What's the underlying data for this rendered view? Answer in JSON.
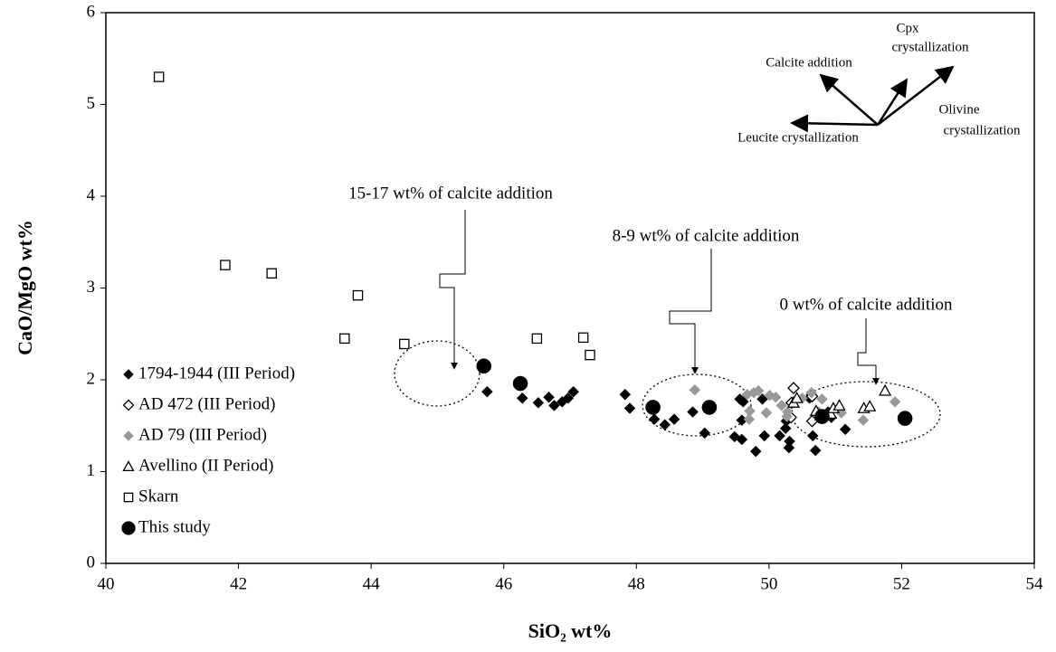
{
  "chart_data": {
    "type": "scatter",
    "x_label": "SiO₂ wt%",
    "y_label": "CaO/MgO wt%",
    "xlim": [
      40,
      54
    ],
    "xticks": [
      40,
      42,
      44,
      46,
      48,
      50,
      52,
      54
    ],
    "ylim": [
      0,
      6
    ],
    "yticks": [
      0,
      1,
      2,
      3,
      4,
      5,
      6
    ],
    "grid": false,
    "legend": "left",
    "series": [
      {
        "name": "1794-1944 (III Period)",
        "marker": "diamond",
        "color": "#000000",
        "x": [
          45.75,
          46.28,
          46.52,
          46.68,
          46.76,
          46.88,
          46.97,
          47.05,
          47.83,
          47.9,
          48.27,
          48.43,
          48.57,
          49.03,
          48.85,
          49.48,
          49.59,
          49.56,
          49.61,
          49.59,
          49.8,
          49.93,
          49.9,
          50.16,
          50.26,
          50.3,
          50.31,
          50.25,
          50.61,
          50.66,
          50.7,
          50.89,
          50.94,
          51.15
        ],
        "y": [
          1.87,
          1.8,
          1.75,
          1.81,
          1.72,
          1.76,
          1.8,
          1.87,
          1.84,
          1.69,
          1.57,
          1.51,
          1.57,
          1.42,
          1.65,
          1.38,
          1.35,
          1.79,
          1.76,
          1.56,
          1.22,
          1.39,
          1.79,
          1.39,
          1.55,
          1.26,
          1.33,
          1.47,
          1.8,
          1.39,
          1.23,
          1.65,
          1.59,
          1.46
        ]
      },
      {
        "name": "AD 472 (III Period)",
        "marker": "open-diamond",
        "color": "#000000",
        "x": [
          50.37,
          50.65,
          50.34,
          50.33,
          50.65
        ],
        "y": [
          1.91,
          1.82,
          1.75,
          1.59,
          1.55
        ]
      },
      {
        "name": "AD 79 (III Period)",
        "marker": "diamond",
        "color": "#999999",
        "x": [
          48.88,
          49.67,
          49.77,
          49.84,
          49.71,
          49.7,
          50.01,
          50.1,
          49.96,
          50.19,
          50.28,
          50.27,
          50.5,
          50.64,
          50.8,
          50.75,
          51.09,
          51.42,
          51.9
        ],
        "y": [
          1.89,
          1.84,
          1.86,
          1.88,
          1.66,
          1.57,
          1.83,
          1.81,
          1.64,
          1.72,
          1.65,
          1.6,
          1.8,
          1.86,
          1.79,
          1.65,
          1.64,
          1.56,
          1.76
        ]
      },
      {
        "name": "Avellino (II Period)",
        "marker": "open-triangle",
        "color": "#000000",
        "x": [
          50.37,
          50.42,
          50.71,
          50.78,
          50.85,
          50.93,
          50.97,
          51.06,
          51.43,
          51.52,
          51.75
        ],
        "y": [
          1.75,
          1.8,
          1.66,
          1.61,
          1.61,
          1.63,
          1.69,
          1.72,
          1.69,
          1.71,
          1.88
        ]
      },
      {
        "name": "Skarn",
        "marker": "open-square",
        "color": "#000000",
        "x": [
          40.8,
          41.8,
          42.5,
          43.8,
          43.6,
          44.5,
          46.5,
          47.2,
          47.3
        ],
        "y": [
          5.3,
          3.25,
          3.16,
          2.92,
          2.45,
          2.39,
          2.45,
          2.46,
          2.27
        ]
      },
      {
        "name": "This study",
        "marker": "circle",
        "color": "#000000",
        "x": [
          45.7,
          46.25,
          48.25,
          49.1,
          50.8,
          52.05
        ],
        "y": [
          2.15,
          1.96,
          1.7,
          1.7,
          1.6,
          1.58
        ]
      }
    ],
    "annotations": [
      "15-17 wt% of calcite addition",
      "8-9 wt% of calcite addition",
      "0 wt% of calcite addition"
    ],
    "inset_labels": [
      "Calcite addition",
      "Cpx",
      "crystallization",
      "Olivine",
      "crystallization",
      "Leucite crystallization"
    ]
  }
}
